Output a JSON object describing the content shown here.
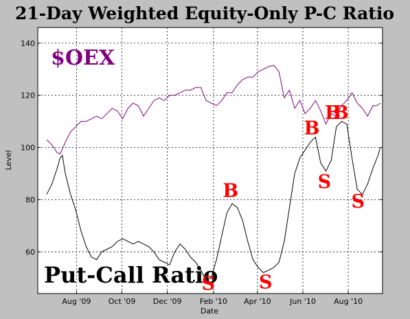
{
  "chart_data": {
    "type": "line",
    "title": "21-Day Weighted Equity-Only P-C Ratio",
    "xlabel": "Date",
    "ylabel": "Level",
    "xlim": [
      "2009-06-10",
      "2010-09-16"
    ],
    "ylim": [
      44,
      146
    ],
    "grid": true,
    "x_ticks": [
      {
        "date": "2009-08-01",
        "label": "Aug '09"
      },
      {
        "date": "2009-10-01",
        "label": "Oct '09"
      },
      {
        "date": "2009-12-01",
        "label": "Dec '09"
      },
      {
        "date": "2010-02-01",
        "label": "Feb '10"
      },
      {
        "date": "2010-04-01",
        "label": "Apr '10"
      },
      {
        "date": "2010-06-01",
        "label": "Jun '10"
      },
      {
        "date": "2010-08-01",
        "label": "Aug '10"
      }
    ],
    "y_ticks": [
      60,
      80,
      100,
      120,
      140
    ],
    "series": [
      {
        "name": "$OEX",
        "color": "#800080",
        "points": [
          [
            "2009-06-22",
            103
          ],
          [
            "2009-06-29",
            101
          ],
          [
            "2009-07-06",
            98
          ],
          [
            "2009-07-10",
            97.5
          ],
          [
            "2009-07-17",
            102
          ],
          [
            "2009-07-24",
            106
          ],
          [
            "2009-07-31",
            108
          ],
          [
            "2009-08-07",
            110
          ],
          [
            "2009-08-14",
            110
          ],
          [
            "2009-08-21",
            111
          ],
          [
            "2009-08-28",
            112
          ],
          [
            "2009-09-04",
            111
          ],
          [
            "2009-09-11",
            113
          ],
          [
            "2009-09-18",
            115
          ],
          [
            "2009-09-25",
            114
          ],
          [
            "2009-10-02",
            111
          ],
          [
            "2009-10-09",
            115
          ],
          [
            "2009-10-16",
            117
          ],
          [
            "2009-10-23",
            116
          ],
          [
            "2009-10-30",
            112
          ],
          [
            "2009-11-06",
            115
          ],
          [
            "2009-11-13",
            118
          ],
          [
            "2009-11-20",
            119
          ],
          [
            "2009-11-27",
            118
          ],
          [
            "2009-12-04",
            120
          ],
          [
            "2009-12-11",
            120
          ],
          [
            "2009-12-18",
            121
          ],
          [
            "2009-12-25",
            122
          ],
          [
            "2010-01-01",
            122
          ],
          [
            "2010-01-08",
            123
          ],
          [
            "2010-01-15",
            123
          ],
          [
            "2010-01-22",
            118
          ],
          [
            "2010-01-29",
            117
          ],
          [
            "2010-02-05",
            116
          ],
          [
            "2010-02-12",
            118
          ],
          [
            "2010-02-19",
            121
          ],
          [
            "2010-02-26",
            121
          ],
          [
            "2010-03-05",
            124
          ],
          [
            "2010-03-12",
            126
          ],
          [
            "2010-03-19",
            127
          ],
          [
            "2010-03-26",
            127
          ],
          [
            "2010-04-02",
            129
          ],
          [
            "2010-04-09",
            130
          ],
          [
            "2010-04-16",
            131
          ],
          [
            "2010-04-23",
            131.5
          ],
          [
            "2010-04-30",
            129
          ],
          [
            "2010-05-07",
            119
          ],
          [
            "2010-05-14",
            122
          ],
          [
            "2010-05-21",
            115
          ],
          [
            "2010-05-28",
            118
          ],
          [
            "2010-06-04",
            113
          ],
          [
            "2010-06-11",
            115
          ],
          [
            "2010-06-18",
            118
          ],
          [
            "2010-06-25",
            114
          ],
          [
            "2010-07-02",
            109
          ],
          [
            "2010-07-09",
            113
          ],
          [
            "2010-07-16",
            112
          ],
          [
            "2010-07-23",
            116
          ],
          [
            "2010-07-30",
            118
          ],
          [
            "2010-08-06",
            121
          ],
          [
            "2010-08-13",
            117
          ],
          [
            "2010-08-20",
            115
          ],
          [
            "2010-08-27",
            112
          ],
          [
            "2010-09-03",
            116
          ],
          [
            "2010-09-08",
            116
          ],
          [
            "2010-09-13",
            117
          ]
        ]
      },
      {
        "name": "Put-Call Ratio",
        "color": "#000000",
        "points": [
          [
            "2009-06-22",
            82
          ],
          [
            "2009-06-29",
            86
          ],
          [
            "2009-07-06",
            92
          ],
          [
            "2009-07-10",
            96
          ],
          [
            "2009-07-13",
            97
          ],
          [
            "2009-07-17",
            90
          ],
          [
            "2009-07-24",
            82
          ],
          [
            "2009-07-31",
            76
          ],
          [
            "2009-08-07",
            68
          ],
          [
            "2009-08-14",
            62
          ],
          [
            "2009-08-21",
            58
          ],
          [
            "2009-08-28",
            57
          ],
          [
            "2009-09-04",
            60
          ],
          [
            "2009-09-11",
            61
          ],
          [
            "2009-09-18",
            62
          ],
          [
            "2009-09-25",
            64
          ],
          [
            "2009-10-02",
            65
          ],
          [
            "2009-10-09",
            64
          ],
          [
            "2009-10-16",
            63
          ],
          [
            "2009-10-23",
            64
          ],
          [
            "2009-10-30",
            63
          ],
          [
            "2009-11-06",
            62
          ],
          [
            "2009-11-13",
            60
          ],
          [
            "2009-11-20",
            57
          ],
          [
            "2009-11-27",
            56
          ],
          [
            "2009-12-04",
            55
          ],
          [
            "2009-12-11",
            60
          ],
          [
            "2009-12-18",
            63
          ],
          [
            "2009-12-25",
            61
          ],
          [
            "2010-01-01",
            58
          ],
          [
            "2010-01-08",
            56
          ],
          [
            "2010-01-15",
            53
          ],
          [
            "2010-01-22",
            49
          ],
          [
            "2010-01-29",
            50
          ],
          [
            "2010-02-05",
            57
          ],
          [
            "2010-02-12",
            66
          ],
          [
            "2010-02-19",
            75
          ],
          [
            "2010-02-26",
            78.5
          ],
          [
            "2010-03-05",
            77
          ],
          [
            "2010-03-12",
            72
          ],
          [
            "2010-03-19",
            64
          ],
          [
            "2010-03-26",
            57
          ],
          [
            "2010-04-02",
            54
          ],
          [
            "2010-04-09",
            52
          ],
          [
            "2010-04-16",
            53
          ],
          [
            "2010-04-23",
            54
          ],
          [
            "2010-04-30",
            56
          ],
          [
            "2010-05-07",
            64
          ],
          [
            "2010-05-14",
            77
          ],
          [
            "2010-05-21",
            90
          ],
          [
            "2010-05-28",
            96
          ],
          [
            "2010-06-04",
            99
          ],
          [
            "2010-06-11",
            102
          ],
          [
            "2010-06-18",
            104
          ],
          [
            "2010-06-25",
            94
          ],
          [
            "2010-07-02",
            91
          ],
          [
            "2010-07-09",
            95
          ],
          [
            "2010-07-16",
            108
          ],
          [
            "2010-07-23",
            110
          ],
          [
            "2010-07-30",
            109
          ],
          [
            "2010-08-06",
            96
          ],
          [
            "2010-08-13",
            84
          ],
          [
            "2010-08-20",
            82
          ],
          [
            "2010-08-27",
            86
          ],
          [
            "2010-09-03",
            92
          ],
          [
            "2010-09-10",
            97
          ],
          [
            "2010-09-13",
            100
          ]
        ]
      }
    ],
    "annotations": [
      {
        "text": "$OEX",
        "kind": "label"
      },
      {
        "text": "Put-Call Ratio",
        "kind": "label"
      },
      {
        "text": "B",
        "kind": "signal",
        "date": "2010-02-24",
        "level": 81
      },
      {
        "text": "S",
        "kind": "signal",
        "date": "2010-01-25",
        "level": 45.5
      },
      {
        "text": "S",
        "kind": "signal",
        "date": "2010-04-12",
        "level": 46
      },
      {
        "text": "B",
        "kind": "signal",
        "date": "2010-06-13",
        "level": 105
      },
      {
        "text": "S",
        "kind": "signal",
        "date": "2010-06-30",
        "level": 84.5
      },
      {
        "text": "B",
        "kind": "signal",
        "date": "2010-07-11",
        "level": 111
      },
      {
        "text": "B",
        "kind": "signal",
        "date": "2010-07-22",
        "level": 111
      },
      {
        "text": "S",
        "kind": "signal",
        "date": "2010-08-14",
        "level": 77
      }
    ]
  }
}
